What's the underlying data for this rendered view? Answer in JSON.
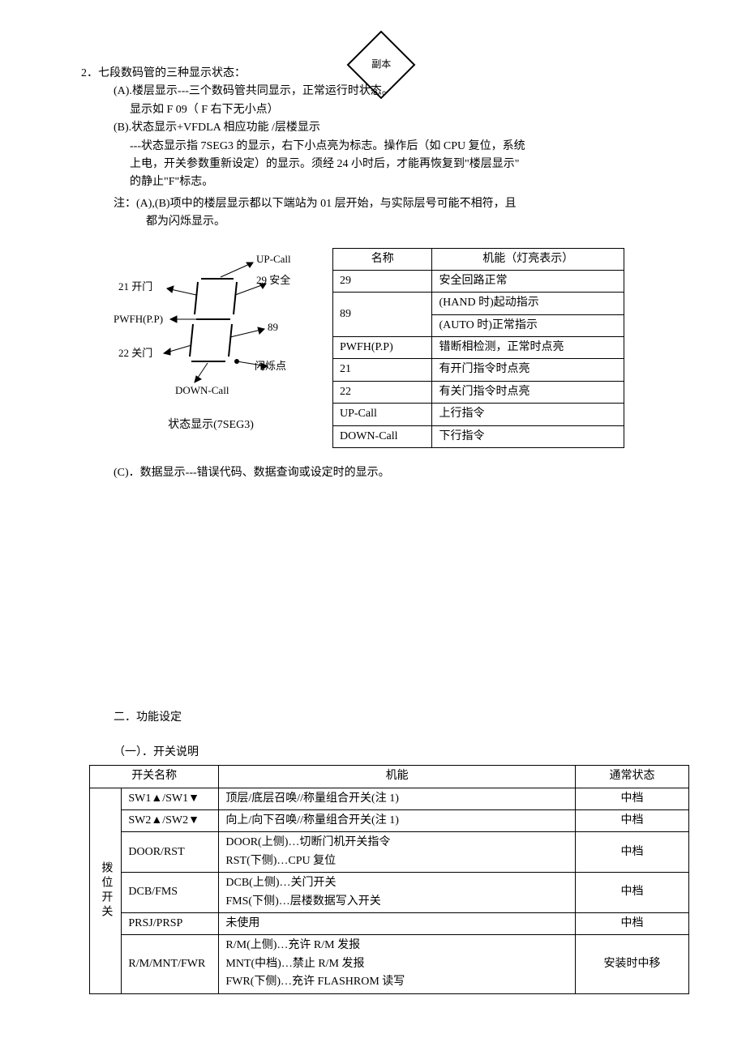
{
  "watermark": "副本",
  "header": {
    "num": "2．",
    "title": "七段数码管的三种显示状态：",
    "a_label": "(A).",
    "a_text": "楼层显示---三个数码管共同显示，正常运行时状态。",
    "a_sub": "显示如 F 09（ F 右下无小点）",
    "b_label": "(B).",
    "b_text": "状态显示+VFDLA 相应功能 /层楼显示",
    "b_line1": "---状态显示指 7SEG3 的显示，右下小点亮为标志。操作后（如 CPU 复位，系统",
    "b_line2": "上电，开关参数重新设定）的显示。须经 24 小时后，才能再恢复到\"楼层显示\"",
    "b_line3": "的静止\"F\"标志。",
    "note_label": "注：",
    "note_text": "(A),(B)项中的楼层显示都以下端站为 01 层开始，与实际层号可能不相符，且",
    "note_cont": "都为闪烁显示。"
  },
  "diagram": {
    "labels": {
      "upcall": "UP-Call",
      "safe": "29 安全",
      "l21": "21 开门",
      "pwfh": "PWFH(P.P)",
      "l22": "22 关门",
      "v89": "89",
      "flash": "闪烁点",
      "downcall": "DOWN-Call"
    },
    "caption": "状态显示(7SEG3)"
  },
  "statusTable": {
    "head_name": "名称",
    "head_func": "机能（灯亮表示）",
    "rows": [
      {
        "name": "29",
        "func": "安全回路正常"
      },
      {
        "name": "89",
        "func1": "(HAND 时)起动指示",
        "func2": "(AUTO 时)正常指示"
      },
      {
        "name": "PWFH(P.P)",
        "func": "错断相检测，正常时点亮"
      },
      {
        "name": "21",
        "func": "有开门指令时点亮"
      },
      {
        "name": "22",
        "func": "有关门指令时点亮"
      },
      {
        "name": "UP-Call",
        "func": "上行指令"
      },
      {
        "name": "DOWN-Call",
        "func": "下行指令"
      }
    ]
  },
  "itemC": "(C)．数据显示---错误代码、数据查询或设定时的显示。",
  "sec2": {
    "title": "二．功能设定",
    "sub": "（一）．开关说明"
  },
  "switchTable": {
    "head_name": "开关名称",
    "head_func": "机能",
    "head_state": "通常状态",
    "group": "拨位开关",
    "rows": [
      {
        "name": "SW1▲/SW1▼",
        "func": [
          "顶层/底层召唤//称量组合开关(注 1)"
        ],
        "state": "中档"
      },
      {
        "name": "SW2▲/SW2▼",
        "func": [
          "向上/向下召唤//称量组合开关(注 1)"
        ],
        "state": "中档"
      },
      {
        "name": "DOOR/RST",
        "func": [
          "DOOR(上侧)…切断门机开关指令",
          "RST(下侧)…CPU 复位"
        ],
        "state": "中档"
      },
      {
        "name": "DCB/FMS",
        "func": [
          "DCB(上侧)…关门开关",
          "FMS(下侧)…层楼数据写入开关"
        ],
        "state": "中档"
      },
      {
        "name": "PRSJ/PRSP",
        "func": [
          "未使用"
        ],
        "state": "中档"
      },
      {
        "name": "R/M/MNT/FWR",
        "func": [
          "R/M(上侧)…充许 R/M 发报",
          "MNT(中档)…禁止 R/M 发报",
          "FWR(下侧)…充许 FLASHROM 读写"
        ],
        "state": "安装时中移"
      }
    ]
  }
}
